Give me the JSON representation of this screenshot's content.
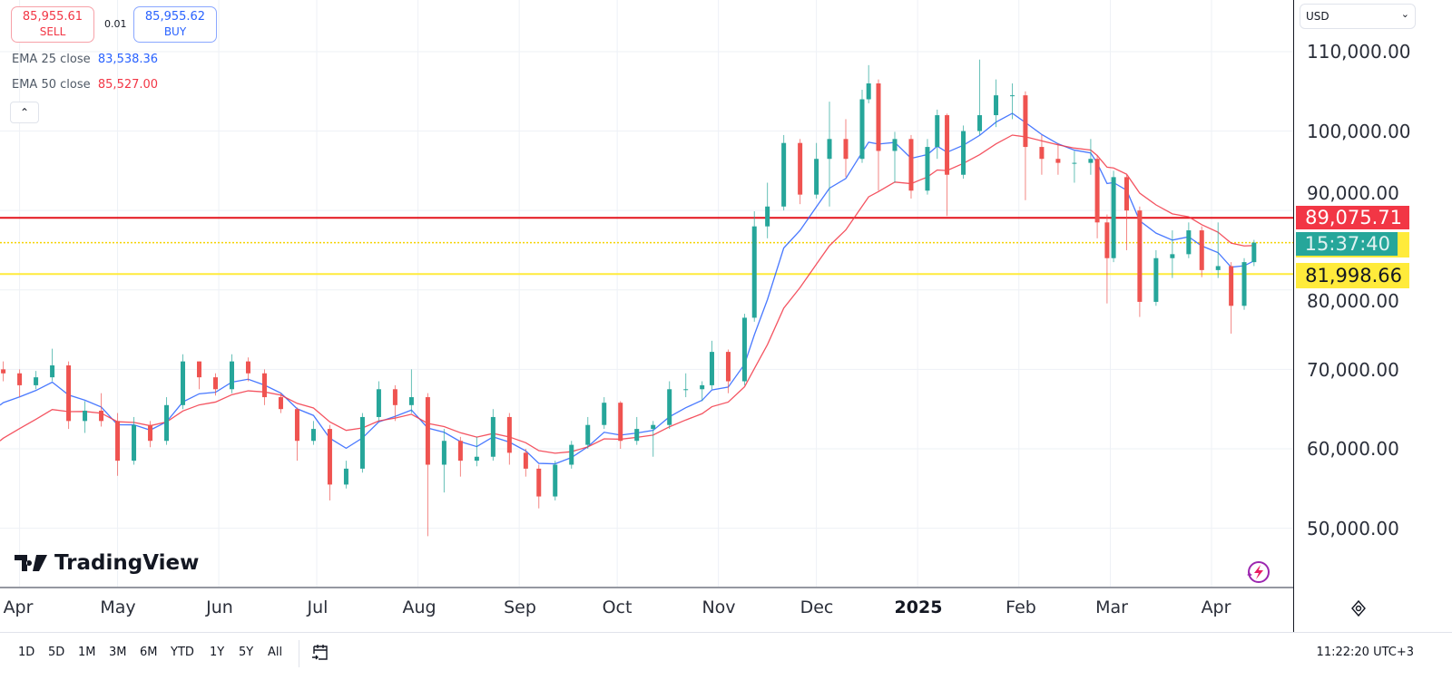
{
  "trade": {
    "sell_price": "85,955.61",
    "sell_label": "SELL",
    "spread": "0.01",
    "buy_price": "85,955.62",
    "buy_label": "BUY"
  },
  "legend": [
    {
      "label": "EMA 25 close",
      "value": "83,538.36",
      "color": "#2962ff"
    },
    {
      "label": "EMA 50 close",
      "value": "85,527.00",
      "color": "#f23645"
    }
  ],
  "currency": "USD",
  "price_axis": {
    "ticks": [
      "110,000.00",
      "100,000.00",
      "90,000.00",
      "80,000.00",
      "70,000.00",
      "60,000.00",
      "50,000.00"
    ]
  },
  "price_labels": {
    "red_line": "89,075.71",
    "countdown": "15:37:40",
    "yellow_line": "81,998.66"
  },
  "time_axis": {
    "labels": [
      "Apr",
      "May",
      "Jun",
      "Jul",
      "Aug",
      "Sep",
      "Oct",
      "Nov",
      "Dec",
      "2025",
      "Feb",
      "Mar",
      "Apr"
    ]
  },
  "ranges": [
    "1D",
    "5D",
    "1M",
    "3M",
    "6M",
    "YTD",
    "1Y",
    "5Y",
    "All"
  ],
  "clock": "11:22:20 UTC+3",
  "logo": "TradingView",
  "colors": {
    "up": "#26a69a",
    "down": "#ef5350",
    "ema25": "#2962ff",
    "ema50": "#f23645",
    "red_line": "#e3131b",
    "yellow_line": "#ffeb3b",
    "countdown_bg": "#26a69a"
  },
  "chart_data": {
    "type": "candlestick",
    "title": "",
    "ylim": [
      42650,
      116500
    ],
    "xlim": [
      "2024-03-26",
      "2025-04-26"
    ],
    "grid": true,
    "hlines": [
      {
        "value": 89075.71,
        "style": "solid",
        "color": "#e3131b"
      },
      {
        "value": 85955.61,
        "style": "dotted",
        "color": "#f5d300"
      },
      {
        "value": 81998.66,
        "style": "solid",
        "color": "#ffeb3b"
      }
    ],
    "ema": [
      {
        "name": "EMA 25 close",
        "period": 25,
        "start": 65500,
        "last": 83538.36
      },
      {
        "name": "EMA 50 close",
        "period": 50,
        "start": 61000,
        "last": 85527.0
      }
    ],
    "candles_columns": [
      "date",
      "open",
      "high",
      "low",
      "close"
    ],
    "candles": [
      [
        "2024-03-27",
        70000,
        71000,
        68500,
        69500
      ],
      [
        "2024-04-01",
        69500,
        70000,
        66500,
        68000
      ],
      [
        "2024-04-06",
        68000,
        69800,
        67500,
        69000
      ],
      [
        "2024-04-11",
        69000,
        72600,
        68500,
        70500
      ],
      [
        "2024-04-16",
        70500,
        71000,
        62500,
        63500
      ],
      [
        "2024-04-21",
        63500,
        66000,
        62000,
        64800
      ],
      [
        "2024-04-26",
        64800,
        67000,
        62800,
        63500
      ],
      [
        "2024-05-01",
        63500,
        64500,
        56600,
        58500
      ],
      [
        "2024-05-06",
        58500,
        64000,
        58000,
        63000
      ],
      [
        "2024-05-11",
        63000,
        63500,
        60200,
        61000
      ],
      [
        "2024-05-16",
        61000,
        66500,
        60500,
        65500
      ],
      [
        "2024-05-21",
        65500,
        71900,
        65000,
        71000
      ],
      [
        "2024-05-26",
        71000,
        71000,
        67500,
        69000
      ],
      [
        "2024-05-31",
        69000,
        69500,
        66700,
        67500
      ],
      [
        "2024-06-05",
        67500,
        71900,
        67000,
        71000
      ],
      [
        "2024-06-10",
        71000,
        71500,
        68500,
        69500
      ],
      [
        "2024-06-15",
        69500,
        70000,
        65500,
        66500
      ],
      [
        "2024-06-20",
        66500,
        67000,
        64500,
        65000
      ],
      [
        "2024-06-25",
        65000,
        65200,
        58500,
        61000
      ],
      [
        "2024-06-30",
        61000,
        63500,
        60500,
        62500
      ],
      [
        "2024-07-05",
        62500,
        63000,
        53500,
        55500
      ],
      [
        "2024-07-10",
        55500,
        58500,
        55000,
        57500
      ],
      [
        "2024-07-15",
        57500,
        64500,
        57000,
        64000
      ],
      [
        "2024-07-20",
        64000,
        68500,
        63500,
        67500
      ],
      [
        "2024-07-25",
        67500,
        68000,
        63500,
        65500
      ],
      [
        "2024-07-30",
        65500,
        70000,
        64500,
        66500
      ],
      [
        "2024-08-04",
        66500,
        67000,
        49000,
        58000
      ],
      [
        "2024-08-09",
        58000,
        62500,
        54500,
        61000
      ],
      [
        "2024-08-14",
        61000,
        61500,
        56500,
        58500
      ],
      [
        "2024-08-19",
        58500,
        61500,
        57800,
        59000
      ],
      [
        "2024-08-24",
        59000,
        65000,
        58500,
        64000
      ],
      [
        "2024-08-29",
        64000,
        64500,
        58000,
        59500
      ],
      [
        "2024-09-03",
        59500,
        60000,
        56500,
        57500
      ],
      [
        "2024-09-07",
        57500,
        58000,
        52500,
        54000
      ],
      [
        "2024-09-12",
        54000,
        58500,
        53500,
        58000
      ],
      [
        "2024-09-17",
        58000,
        61000,
        57500,
        60500
      ],
      [
        "2024-09-22",
        60500,
        64000,
        60000,
        63000
      ],
      [
        "2024-09-27",
        63000,
        66500,
        62500,
        65800
      ],
      [
        "2024-10-02",
        65800,
        66000,
        60000,
        61000
      ],
      [
        "2024-10-07",
        61000,
        64000,
        60500,
        62500
      ],
      [
        "2024-10-12",
        62500,
        63500,
        59000,
        63000
      ],
      [
        "2024-10-17",
        63000,
        68500,
        62500,
        67500
      ],
      [
        "2024-10-22",
        67500,
        69500,
        66500,
        67500
      ],
      [
        "2024-10-27",
        67500,
        68500,
        66000,
        68000
      ],
      [
        "2024-10-30",
        68000,
        73600,
        67500,
        72200
      ],
      [
        "2024-11-04",
        72200,
        72500,
        67000,
        68500
      ],
      [
        "2024-11-09",
        68500,
        77000,
        68000,
        76500
      ],
      [
        "2024-11-12",
        76500,
        89900,
        76000,
        88000
      ],
      [
        "2024-11-16",
        88000,
        93500,
        86500,
        90500
      ],
      [
        "2024-11-21",
        90500,
        99500,
        90000,
        98500
      ],
      [
        "2024-11-26",
        98500,
        99000,
        90800,
        92000
      ],
      [
        "2024-12-01",
        92000,
        98500,
        91500,
        96500
      ],
      [
        "2024-12-05",
        96500,
        103700,
        90500,
        99000
      ],
      [
        "2024-12-10",
        99000,
        101500,
        94200,
        96500
      ],
      [
        "2024-12-15",
        96500,
        105200,
        96000,
        104000
      ],
      [
        "2024-12-17",
        104000,
        108300,
        103500,
        106000
      ],
      [
        "2024-12-20",
        106000,
        106500,
        92500,
        97500
      ],
      [
        "2024-12-25",
        97500,
        99900,
        93500,
        99000
      ],
      [
        "2024-12-30",
        99000,
        99500,
        91500,
        92500
      ],
      [
        "2025-01-04",
        92500,
        99000,
        92000,
        98000
      ],
      [
        "2025-01-07",
        98000,
        102700,
        96500,
        102000
      ],
      [
        "2025-01-10",
        102000,
        102200,
        89300,
        94500
      ],
      [
        "2025-01-15",
        94500,
        100700,
        94000,
        100000
      ],
      [
        "2025-01-20",
        100000,
        109000,
        99500,
        102000
      ],
      [
        "2025-01-25",
        102000,
        106500,
        100500,
        104500
      ],
      [
        "2025-01-30",
        104500,
        106000,
        101500,
        104500
      ],
      [
        "2025-02-03",
        104500,
        105000,
        91300,
        98000
      ],
      [
        "2025-02-08",
        98000,
        99500,
        94500,
        96500
      ],
      [
        "2025-02-13",
        96500,
        98500,
        94500,
        96000
      ],
      [
        "2025-02-18",
        96000,
        97500,
        93500,
        96000
      ],
      [
        "2025-02-23",
        96000,
        99000,
        94500,
        96500
      ],
      [
        "2025-02-25",
        96500,
        97000,
        86500,
        88500
      ],
      [
        "2025-02-28",
        88500,
        89500,
        78300,
        84000
      ],
      [
        "2025-03-02",
        84000,
        95000,
        83500,
        94200
      ],
      [
        "2025-03-06",
        94200,
        94500,
        85000,
        90000
      ],
      [
        "2025-03-10",
        90000,
        90500,
        76600,
        78500
      ],
      [
        "2025-03-15",
        78500,
        85000,
        78000,
        84000
      ],
      [
        "2025-03-20",
        84000,
        87500,
        81500,
        84500
      ],
      [
        "2025-03-25",
        84500,
        88500,
        84000,
        87500
      ],
      [
        "2025-03-29",
        87500,
        88000,
        81600,
        82500
      ],
      [
        "2025-04-03",
        82500,
        88500,
        81500,
        83000
      ],
      [
        "2025-04-07",
        83000,
        83500,
        74500,
        78000
      ],
      [
        "2025-04-11",
        78000,
        84000,
        77500,
        83500
      ],
      [
        "2025-04-14",
        83500,
        86300,
        83000,
        85955.61
      ]
    ]
  }
}
